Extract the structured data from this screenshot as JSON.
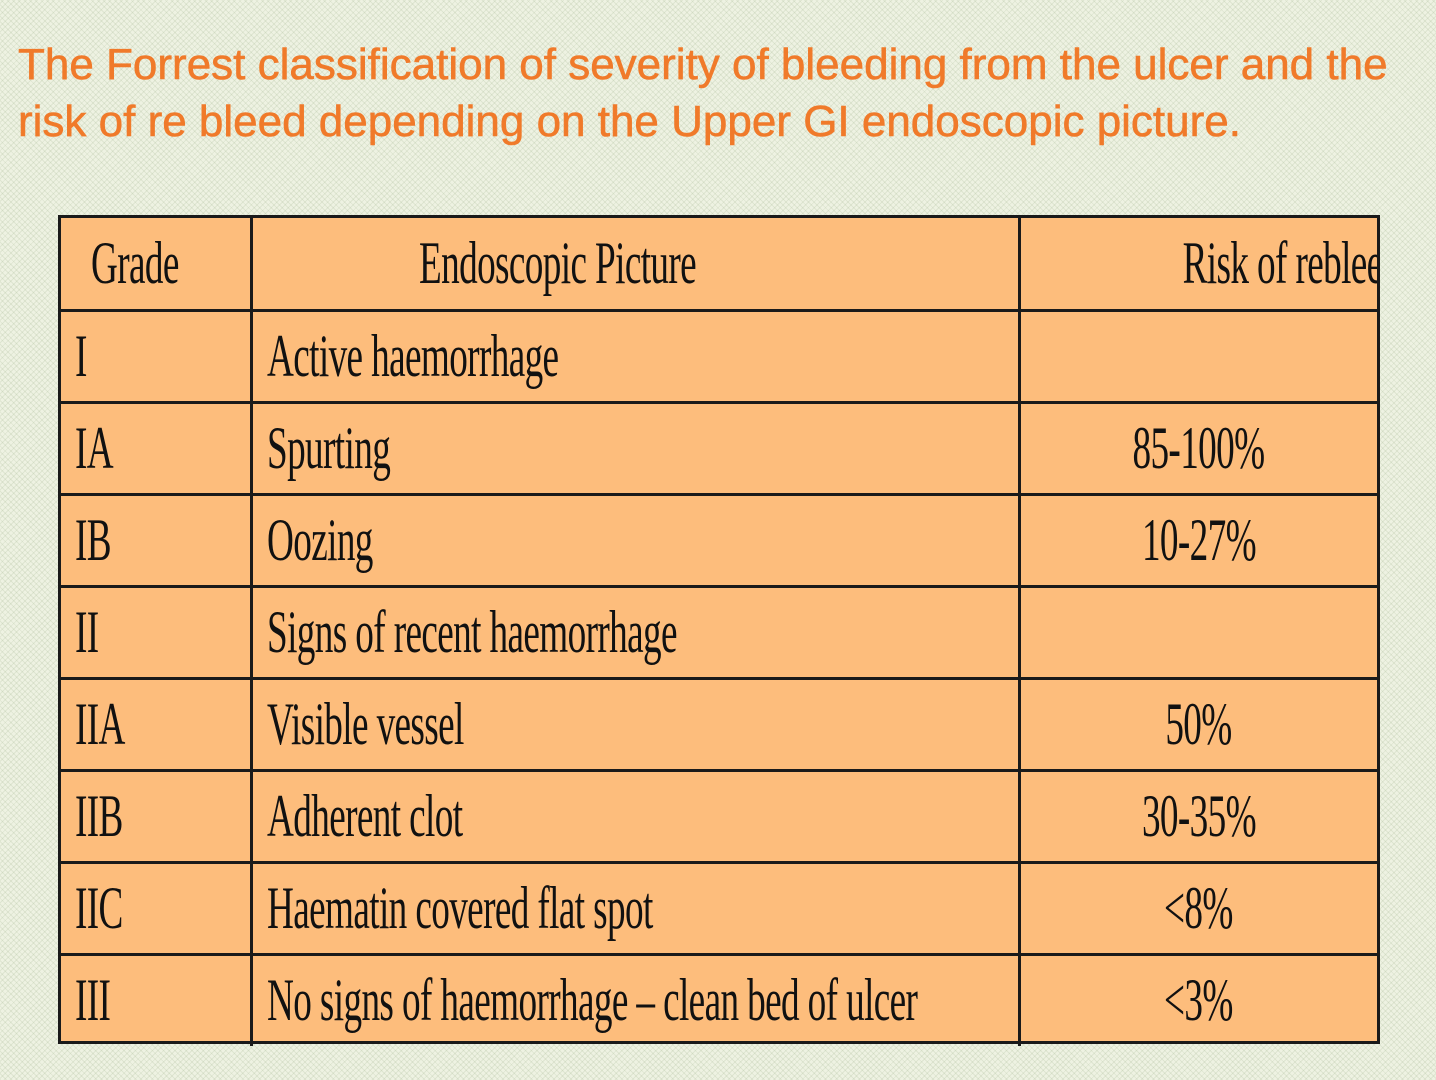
{
  "slide": {
    "title": "The Forrest classification of severity of bleeding from the ulcer and the risk of re bleed depending on the Upper GI endoscopic picture."
  },
  "table": {
    "headers": {
      "grade": "Grade",
      "picture": "Endoscopic Picture",
      "risk": "Risk of rebleeding"
    },
    "rows": [
      {
        "grade": "I",
        "picture": "Active haemorrhage",
        "risk": ""
      },
      {
        "grade": "IA",
        "picture": "Spurting",
        "risk": "85-100%"
      },
      {
        "grade": "IB",
        "picture": "Oozing",
        "risk": "10-27%"
      },
      {
        "grade": "II",
        "picture": "Signs of recent haemorrhage",
        "risk": ""
      },
      {
        "grade": "IIA",
        "picture": "Visible vessel",
        "risk": "50%"
      },
      {
        "grade": "IIB",
        "picture": "Adherent clot",
        "risk": "30-35%"
      },
      {
        "grade": "IIC",
        "picture": "Haematin covered flat spot",
        "risk": "<8%"
      },
      {
        "grade": "III",
        "picture": "No signs of haemorrhage – clean bed of ulcer",
        "risk": "<3%"
      }
    ]
  },
  "colors": {
    "title": "#f07a2a",
    "table_fill": "#fdbd7c",
    "border": "#1a1a1a",
    "background": "#eef2e2"
  }
}
